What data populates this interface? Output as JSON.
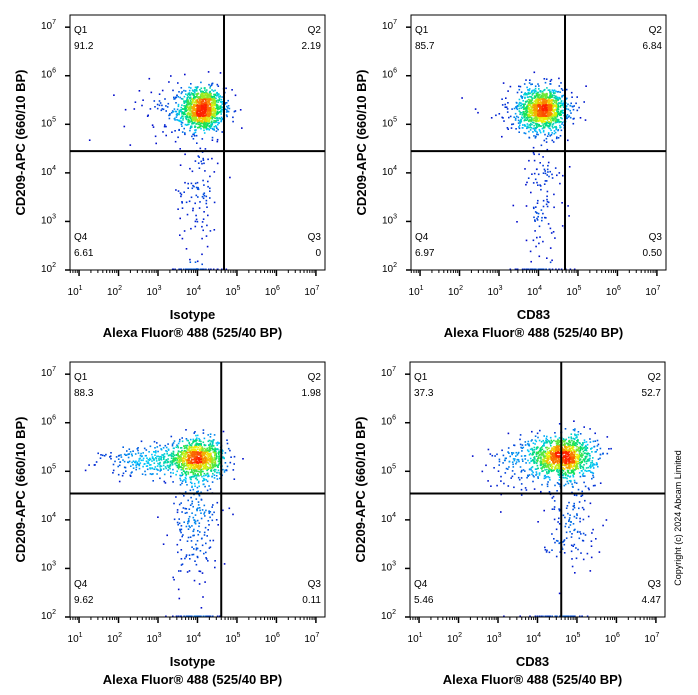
{
  "chart_data": [
    {
      "type": "scatter",
      "subtype": "flow-cytometry density dot plot",
      "xscale": "log",
      "yscale": "log",
      "xlim": [
        5.9,
        17000000
      ],
      "ylim": [
        100,
        17800000
      ],
      "x_ticks": [
        "10^1",
        "10^2",
        "10^3",
        "10^4",
        "10^5",
        "10^6",
        "10^7"
      ],
      "y_ticks": [
        "10^2",
        "10^3",
        "10^4",
        "10^5",
        "10^6",
        "10^7"
      ],
      "ylabel": "CD209-APC  (660/10 BP)",
      "xlabel_line1": "Isotype",
      "xlabel_line2": "Alexa Fluor® 488  (525/40 BP)",
      "gate": {
        "x": 47000,
        "y": 28000
      },
      "quadrants": [
        {
          "name": "Q1",
          "value": "91.2"
        },
        {
          "name": "Q2",
          "value": "2.19"
        },
        {
          "name": "Q3",
          "value": "0"
        },
        {
          "name": "Q4",
          "value": "6.61"
        }
      ],
      "populations": [
        {
          "log_x": 4.1,
          "log_y": 5.3,
          "sd_x": 0.28,
          "sd_y": 0.22,
          "weight": 0.82
        },
        {
          "log_x": 4.0,
          "log_y": 3.6,
          "sd_x": 0.25,
          "sd_y": 0.7,
          "weight": 0.08
        },
        {
          "log_x": 3.5,
          "log_y": 5.3,
          "sd_x": 0.7,
          "sd_y": 0.3,
          "weight": 0.07
        },
        {
          "log_x": 3.9,
          "log_y": 2.0,
          "sd_x": 0.35,
          "sd_y": 0.0,
          "weight": 0.03
        }
      ]
    },
    {
      "type": "scatter",
      "subtype": "flow-cytometry density dot plot",
      "xscale": "log",
      "yscale": "log",
      "xlim": [
        5.9,
        17000000
      ],
      "ylim": [
        100,
        17800000
      ],
      "x_ticks": [
        "10^1",
        "10^2",
        "10^3",
        "10^4",
        "10^5",
        "10^6",
        "10^7"
      ],
      "y_ticks": [
        "10^2",
        "10^3",
        "10^4",
        "10^5",
        "10^6",
        "10^7"
      ],
      "ylabel": "CD209-APC  (660/10 BP)",
      "xlabel_line1": "CD83",
      "xlabel_line2": "Alexa Fluor® 488  (525/40 BP)",
      "gate": {
        "x": 47000,
        "y": 28000
      },
      "quadrants": [
        {
          "name": "Q1",
          "value": "85.7"
        },
        {
          "name": "Q2",
          "value": "6.84"
        },
        {
          "name": "Q3",
          "value": "0.50"
        },
        {
          "name": "Q4",
          "value": "6.97"
        }
      ],
      "populations": [
        {
          "log_x": 4.1,
          "log_y": 5.3,
          "sd_x": 0.3,
          "sd_y": 0.22,
          "weight": 0.8
        },
        {
          "log_x": 4.1,
          "log_y": 3.6,
          "sd_x": 0.3,
          "sd_y": 0.7,
          "weight": 0.09
        },
        {
          "log_x": 3.7,
          "log_y": 5.3,
          "sd_x": 0.6,
          "sd_y": 0.3,
          "weight": 0.08
        },
        {
          "log_x": 4.0,
          "log_y": 2.0,
          "sd_x": 0.35,
          "sd_y": 0.0,
          "weight": 0.03
        }
      ]
    },
    {
      "type": "scatter",
      "subtype": "flow-cytometry density dot plot",
      "xscale": "log",
      "yscale": "log",
      "xlim": [
        5.9,
        17000000
      ],
      "ylim": [
        100,
        17800000
      ],
      "x_ticks": [
        "10^1",
        "10^2",
        "10^3",
        "10^4",
        "10^5",
        "10^6",
        "10^7"
      ],
      "y_ticks": [
        "10^2",
        "10^3",
        "10^4",
        "10^5",
        "10^6",
        "10^7"
      ],
      "ylabel": "CD209-APC  (660/10 BP)",
      "xlabel_line1": "Isotype",
      "xlabel_line2": "Alexa Fluor® 488  (525/40 BP)",
      "gate": {
        "x": 40000,
        "y": 35000
      },
      "quadrants": [
        {
          "name": "Q1",
          "value": "88.3"
        },
        {
          "name": "Q2",
          "value": "1.98"
        },
        {
          "name": "Q3",
          "value": "0.11"
        },
        {
          "name": "Q4",
          "value": "9.62"
        }
      ],
      "populations": [
        {
          "log_x": 4.0,
          "log_y": 5.25,
          "sd_x": 0.35,
          "sd_y": 0.2,
          "weight": 0.6
        },
        {
          "log_x": 3.0,
          "log_y": 5.2,
          "sd_x": 0.7,
          "sd_y": 0.15,
          "weight": 0.22
        },
        {
          "log_x": 3.9,
          "log_y": 3.9,
          "sd_x": 0.3,
          "sd_y": 0.6,
          "weight": 0.15
        },
        {
          "log_x": 3.9,
          "log_y": 2.0,
          "sd_x": 0.35,
          "sd_y": 0.0,
          "weight": 0.03
        }
      ]
    },
    {
      "type": "scatter",
      "subtype": "flow-cytometry density dot plot",
      "xscale": "log",
      "yscale": "log",
      "xlim": [
        5.9,
        17000000
      ],
      "ylim": [
        100,
        17800000
      ],
      "x_ticks": [
        "10^1",
        "10^2",
        "10^3",
        "10^4",
        "10^5",
        "10^6",
        "10^7"
      ],
      "y_ticks": [
        "10^2",
        "10^3",
        "10^4",
        "10^5",
        "10^6",
        "10^7"
      ],
      "ylabel": "CD209-APC  (660/10 BP)",
      "xlabel_line1": "CD83",
      "xlabel_line2": "Alexa Fluor® 488  (525/40 BP)",
      "gate": {
        "x": 40000,
        "y": 35000
      },
      "quadrants": [
        {
          "name": "Q1",
          "value": "37.3"
        },
        {
          "name": "Q2",
          "value": "52.7"
        },
        {
          "name": "Q3",
          "value": "4.47"
        },
        {
          "name": "Q4",
          "value": "5.46"
        }
      ],
      "populations": [
        {
          "log_x": 4.6,
          "log_y": 5.3,
          "sd_x": 0.42,
          "sd_y": 0.22,
          "weight": 0.8
        },
        {
          "log_x": 4.8,
          "log_y": 4.0,
          "sd_x": 0.35,
          "sd_y": 0.5,
          "weight": 0.1
        },
        {
          "log_x": 3.4,
          "log_y": 5.1,
          "sd_x": 0.5,
          "sd_y": 0.3,
          "weight": 0.07
        },
        {
          "log_x": 4.5,
          "log_y": 2.0,
          "sd_x": 0.4,
          "sd_y": 0.0,
          "weight": 0.03
        }
      ]
    }
  ],
  "colormap": [
    "#0000c8",
    "#00c8ff",
    "#00e060",
    "#f0f000",
    "#ff2000"
  ],
  "copyright": "Copyright (c) 2024 Abcam Limited"
}
